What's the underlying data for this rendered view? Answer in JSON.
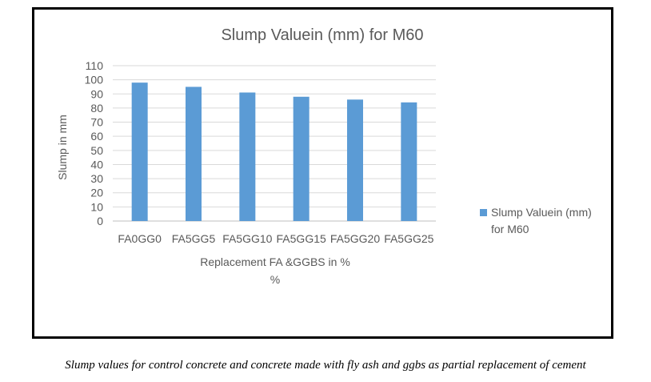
{
  "caption": "Slump values for control concrete and concrete made with fly ash and ggbs as partial replacement of cement",
  "chart_data": {
    "type": "bar",
    "title": "Slump Valuein (mm) for M60",
    "xlabel_line1": "Replacement FA &GGBS  in %",
    "xlabel_line2": "%",
    "ylabel": "Slump in mm",
    "categories": [
      "FA0GG0",
      "FA5GG5",
      "FA5GG10",
      "FA5GG15",
      "FA5GG20",
      "FA5GG25"
    ],
    "series": [
      {
        "name": "Slump Valuein (mm) for M60",
        "legend_line1": "Slump Valuein (mm)",
        "legend_line2": "for M60",
        "values": [
          98,
          95,
          91,
          88,
          86,
          84
        ]
      }
    ],
    "ylim": [
      0,
      110
    ],
    "yticks": [
      "0",
      "10",
      "20",
      "30",
      "40",
      "50",
      "60",
      "70",
      "80",
      "90",
      "100",
      "110"
    ],
    "grid": true,
    "legend_position": "right",
    "colors": {
      "bar": "#5b9bd5",
      "grid": "#d9d9d9",
      "text": "#595959",
      "axis": "#bfbfbf"
    }
  }
}
